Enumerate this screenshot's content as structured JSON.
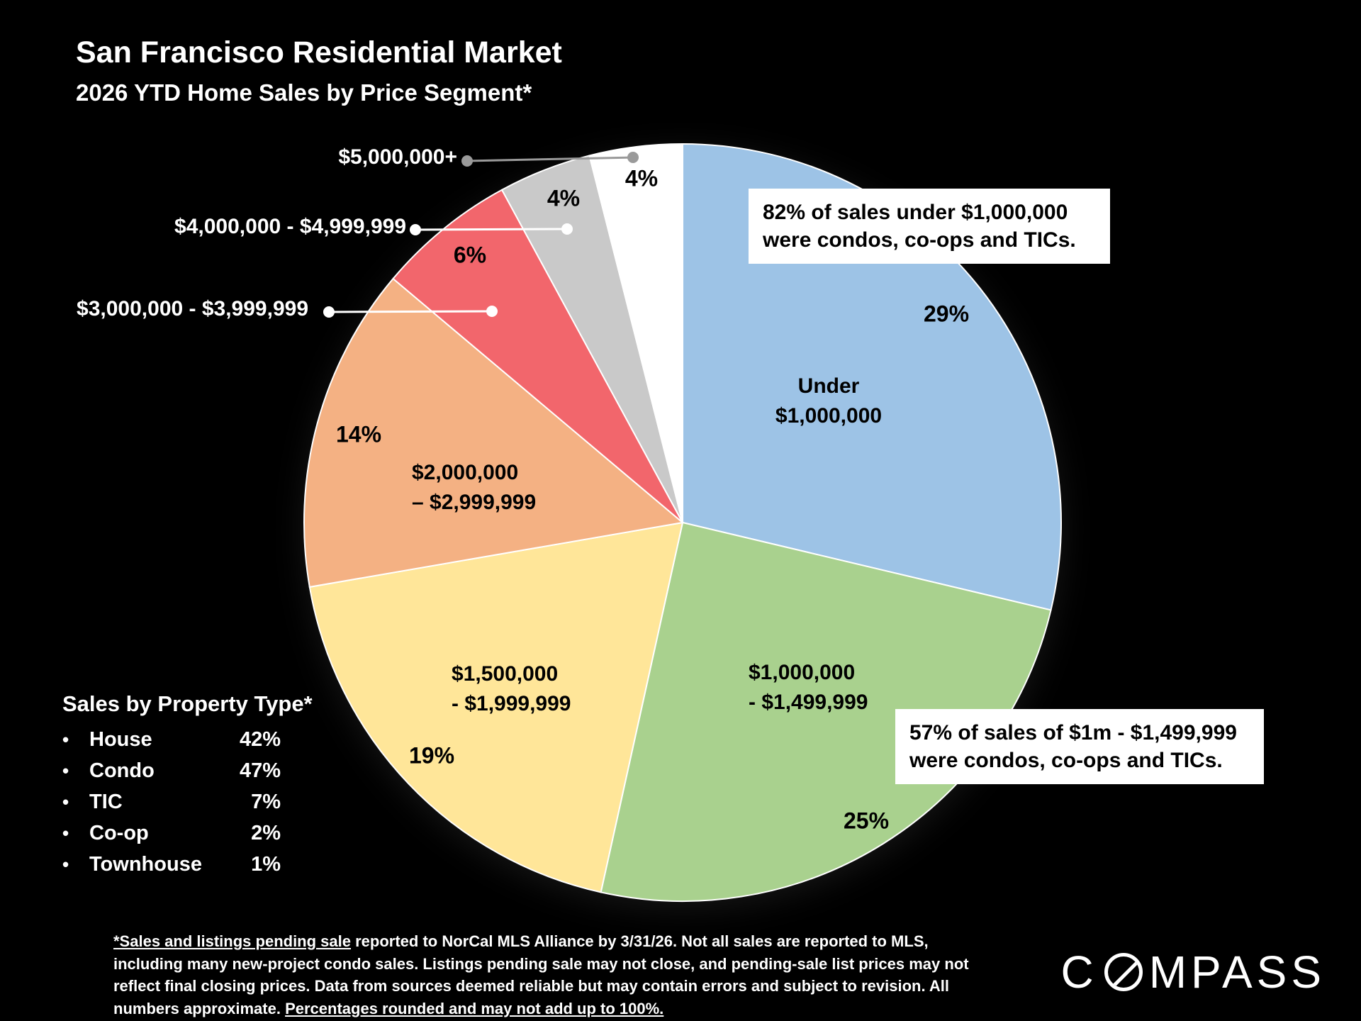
{
  "title": "San Francisco Residential Market",
  "subtitle": "2026 YTD Home Sales by Price Segment*",
  "chart_data": {
    "type": "pie",
    "title": "San Francisco Residential Market — 2026 YTD Home Sales by Price Segment",
    "direction": "clockwise",
    "start_angle": "12 o'clock",
    "slices": [
      {
        "label": "Under $1,000,000",
        "label_lines": [
          "Under",
          "$1,000,000"
        ],
        "value": 29,
        "pct_label": "29%",
        "color": "#9DC3E6"
      },
      {
        "label": "$1,000,000 - $1,499,999",
        "label_lines": [
          "$1,000,000",
          "- $1,499,999"
        ],
        "value": 25,
        "pct_label": "25%",
        "color": "#A9D18E"
      },
      {
        "label": "$1,500,000 - $1,999,999",
        "label_lines": [
          "$1,500,000",
          "- $1,999,999"
        ],
        "value": 19,
        "pct_label": "19%",
        "color": "#FFE699"
      },
      {
        "label": "$2,000,000 – $2,999,999",
        "label_lines": [
          "$2,000,000",
          "– $2,999,999"
        ],
        "value": 14,
        "pct_label": "14%",
        "color": "#F4B183"
      },
      {
        "label": "$3,000,000 - $3,999,999",
        "label_lines": [
          "$3,000,000 - $3,999,999"
        ],
        "value": 6,
        "pct_label": "6%",
        "color": "#F2666C"
      },
      {
        "label": "$4,000,000 - $4,999,999",
        "label_lines": [
          "$4,000,000 - $4,999,999"
        ],
        "value": 4,
        "pct_label": "4%",
        "color": "#C9C9C9"
      },
      {
        "label": "$5,000,000+",
        "label_lines": [
          "$5,000,000+"
        ],
        "value": 4,
        "pct_label": "4%",
        "color": "#FFFFFF"
      }
    ]
  },
  "callouts": {
    "top": "82% of sales under $1,000,000 were condos, co-ops and TICs.",
    "bottom": "57% of sales of $1m - $1,499,999 were condos, co-ops and TICs."
  },
  "property_type": {
    "heading": "Sales by Property Type*",
    "items": [
      {
        "name": "House",
        "pct": "42%"
      },
      {
        "name": "Condo",
        "pct": "47%"
      },
      {
        "name": "TIC",
        "pct": "7%"
      },
      {
        "name": "Co-op",
        "pct": "2%"
      },
      {
        "name": "Townhouse",
        "pct": "1%"
      }
    ]
  },
  "footnote": {
    "part1": "*Sales and listings pending sale",
    "part2": " reported to NorCal MLS Alliance by 3/31/26. Not all sales are reported to MLS, including many new-project condo sales. Listings pending sale may not close, and pending-sale list prices may not reflect final closing prices. Data from sources deemed reliable but may contain errors and subject to revision. All numbers approximate. ",
    "part3": "Percentages rounded and may not add up to 100%."
  },
  "brand": {
    "name": "COMPASS",
    "left": "C",
    "right": "MPASS"
  }
}
